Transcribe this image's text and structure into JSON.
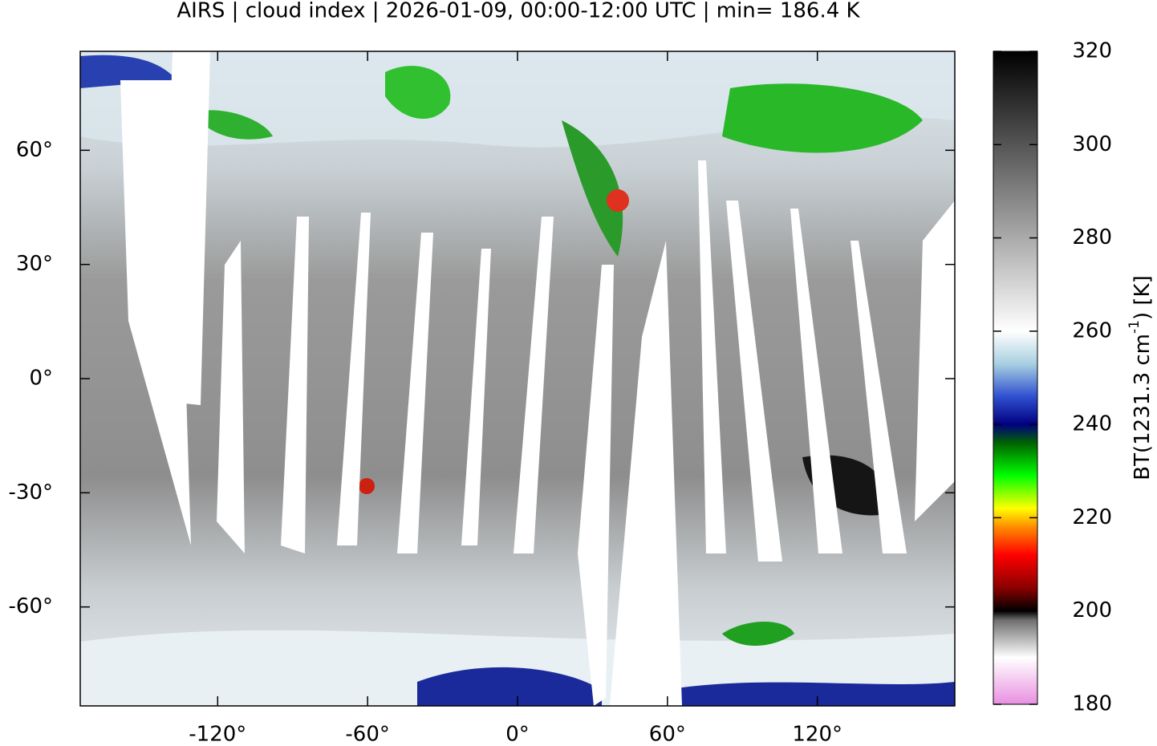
{
  "chart_data": {
    "type": "map",
    "title": "AIRS | cloud index | 2026-01-09, 00:00-12:00 UTC | min= 186.4 K",
    "xlim": [
      -175,
      175
    ],
    "ylim": [
      -86,
      86
    ],
    "xticks": [
      {
        "value": -120,
        "label": "-120°"
      },
      {
        "value": -60,
        "label": "-60°"
      },
      {
        "value": 0,
        "label": "0°"
      },
      {
        "value": 60,
        "label": "60°"
      },
      {
        "value": 120,
        "label": "120°"
      }
    ],
    "yticks": [
      {
        "value": 60,
        "label": "60°"
      },
      {
        "value": 30,
        "label": "30°"
      },
      {
        "value": 0,
        "label": "0°"
      },
      {
        "value": -30,
        "label": "-30°"
      },
      {
        "value": -60,
        "label": "-60°"
      }
    ],
    "colorbar": {
      "label_parts": [
        "BT(1231.3 cm",
        "-1",
        ") [K]"
      ],
      "lim": [
        180,
        320
      ],
      "ticks": [
        180,
        200,
        220,
        240,
        260,
        280,
        300,
        320
      ],
      "colormap": [
        {
          "value": 180,
          "color": "#e890e0"
        },
        {
          "value": 190,
          "color": "#ffffff"
        },
        {
          "value": 198,
          "color": "#707070"
        },
        {
          "value": 200,
          "color": "#000000"
        },
        {
          "value": 205,
          "color": "#8b0000"
        },
        {
          "value": 212,
          "color": "#ff0000"
        },
        {
          "value": 218,
          "color": "#ff8c00"
        },
        {
          "value": 222,
          "color": "#ffff00"
        },
        {
          "value": 229,
          "color": "#00ff00"
        },
        {
          "value": 236,
          "color": "#006400"
        },
        {
          "value": 240,
          "color": "#000080"
        },
        {
          "value": 246,
          "color": "#3050d0"
        },
        {
          "value": 253,
          "color": "#a8d0e0"
        },
        {
          "value": 260,
          "color": "#ffffff"
        },
        {
          "value": 320,
          "color": "#000000"
        }
      ]
    }
  }
}
